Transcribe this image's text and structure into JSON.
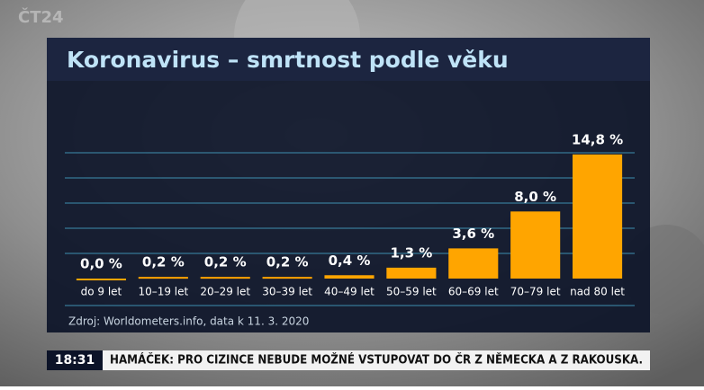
{
  "logo": "ČT24",
  "chart_data": {
    "type": "bar",
    "title": "Koronavirus – smrtnost podle věku",
    "categories": [
      "do 9 let",
      "10–19 let",
      "20–29 let",
      "30–39 let",
      "40–49 let",
      "50–59 let",
      "60–69 let",
      "70–79 let",
      "nad 80 let"
    ],
    "values": [
      0.0,
      0.2,
      0.2,
      0.2,
      0.4,
      1.3,
      3.6,
      8.0,
      14.8
    ],
    "value_labels": [
      "0,0 %",
      "0,2 %",
      "0,2 %",
      "0,2 %",
      "0,4 %",
      "1,3 %",
      "3,6 %",
      "8,0 %",
      "14,8 %"
    ],
    "color": "#ffa500",
    "ylim": [
      0,
      15
    ],
    "yticks": [
      3,
      6,
      9,
      12,
      15
    ],
    "grid": true,
    "source": "Zdroj: Worldometers.info, data k 11. 3. 2020"
  },
  "ticker": {
    "time": "18:31",
    "headline": "HAMÁČEK: PRO CIZINCE NEBUDE MOŽNÉ VSTUPOVAT DO ČR Z NĚMECKA A Z RAKOUSKA."
  }
}
